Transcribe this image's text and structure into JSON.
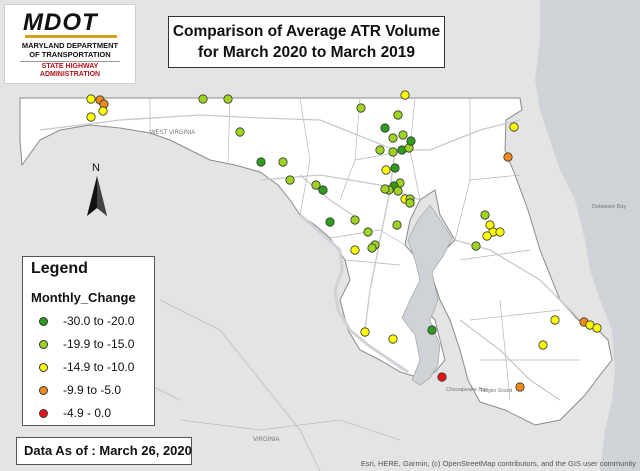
{
  "logo": {
    "wordmark": "MDOT",
    "line1": "MARYLAND DEPARTMENT",
    "line2": "OF TRANSPORTATION",
    "line3": "STATE HIGHWAY",
    "line4": "ADMINISTRATION",
    "colors": {
      "stripe": "#d4a017",
      "sha_red": "#b1121b"
    }
  },
  "title": {
    "line1": "Comparison of Average ATR Volume",
    "line2": "for March 2020 to March 2019"
  },
  "north_arrow": {
    "label": "N"
  },
  "legend": {
    "title": "Legend",
    "field": "Monthly_Change",
    "classes": [
      {
        "label": "-30.0 to -20.0",
        "color": "#2e9d1e"
      },
      {
        "label": "-19.9 to -15.0",
        "color": "#9fd321"
      },
      {
        "label": "-14.9 to -10.0",
        "color": "#ffff00"
      },
      {
        "label": "-9.9 to -5.0",
        "color": "#f08a1c"
      },
      {
        "label": "-4.9 - 0.0",
        "color": "#ee1111"
      }
    ]
  },
  "data_as_of": "Data As of : March 26, 2020",
  "attribution": "Esri, HERE, Garmin, (c) OpenStreetMap contributors, and the GIS user community",
  "place_labels": [
    {
      "text": "WEST VIRGINIA"
    },
    {
      "text": "VIRGINIA"
    },
    {
      "text": "Chesapeake Bay"
    },
    {
      "text": "Delaware Bay"
    },
    {
      "text": "Tangier Sound"
    }
  ]
}
